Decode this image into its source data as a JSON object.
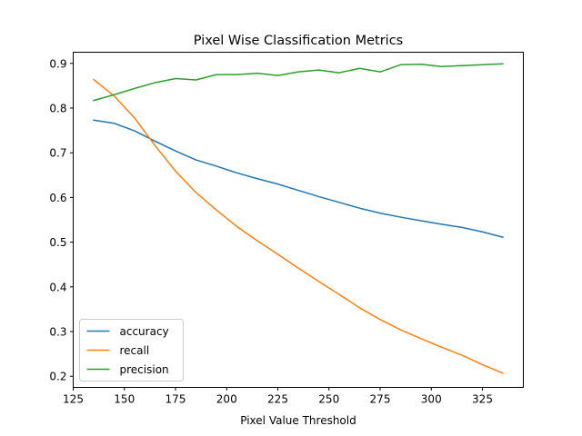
{
  "chart_data": {
    "type": "line",
    "title": "Pixel Wise Classification Metrics",
    "xlabel": "Pixel Value Threshold",
    "ylabel": "",
    "xlim": [
      125,
      345
    ],
    "ylim": [
      0.175,
      0.925
    ],
    "xticks": [
      125,
      150,
      175,
      200,
      225,
      250,
      275,
      300,
      325
    ],
    "yticks": [
      0.2,
      0.3,
      0.4,
      0.5,
      0.6,
      0.7,
      0.8,
      0.9
    ],
    "x": [
      135,
      145,
      155,
      165,
      175,
      185,
      195,
      205,
      215,
      225,
      235,
      245,
      255,
      265,
      275,
      285,
      295,
      305,
      315,
      325,
      335
    ],
    "series": [
      {
        "name": "accuracy",
        "color": "#1f77b4",
        "values": [
          0.773,
          0.766,
          0.749,
          0.726,
          0.704,
          0.684,
          0.67,
          0.655,
          0.642,
          0.63,
          0.616,
          0.602,
          0.589,
          0.576,
          0.565,
          0.556,
          0.548,
          0.54,
          0.533,
          0.523,
          0.511
        ]
      },
      {
        "name": "recall",
        "color": "#ff7f0e",
        "values": [
          0.864,
          0.827,
          0.778,
          0.716,
          0.659,
          0.611,
          0.572,
          0.535,
          0.503,
          0.473,
          0.442,
          0.412,
          0.383,
          0.353,
          0.327,
          0.304,
          0.284,
          0.265,
          0.247,
          0.226,
          0.207
        ]
      },
      {
        "name": "precision",
        "color": "#2ca02c",
        "values": [
          0.817,
          0.83,
          0.844,
          0.857,
          0.866,
          0.863,
          0.875,
          0.875,
          0.878,
          0.873,
          0.881,
          0.885,
          0.879,
          0.889,
          0.881,
          0.897,
          0.898,
          0.893,
          0.895,
          0.897,
          0.899
        ]
      }
    ],
    "grid": false,
    "legend_position": "lower-left"
  }
}
